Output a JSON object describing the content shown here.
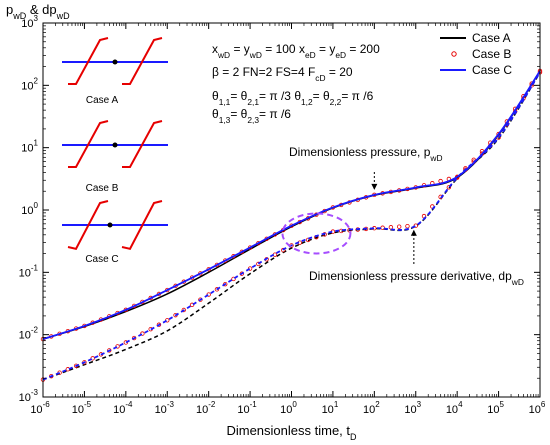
{
  "chart_data": {
    "type": "line",
    "x_scale": "log",
    "y_scale": "log",
    "xlim": [
      1e-06,
      1000000.0
    ],
    "ylim": [
      0.001,
      1000.0
    ],
    "xlabel": "Dimensionless time, t",
    "xlabel_sub": "D",
    "ylabel_parts": [
      "p",
      "wD",
      "& dp",
      "wD"
    ],
    "x_ticks": [
      {
        "base": "10",
        "exp": "-6"
      },
      {
        "base": "10",
        "exp": "-5"
      },
      {
        "base": "10",
        "exp": "-4"
      },
      {
        "base": "10",
        "exp": "-3"
      },
      {
        "base": "10",
        "exp": "-2"
      },
      {
        "base": "10",
        "exp": "-1"
      },
      {
        "base": "10",
        "exp": "0"
      },
      {
        "base": "10",
        "exp": "1"
      },
      {
        "base": "10",
        "exp": "2"
      },
      {
        "base": "10",
        "exp": "3"
      },
      {
        "base": "10",
        "exp": "4"
      },
      {
        "base": "10",
        "exp": "5"
      },
      {
        "base": "10",
        "exp": "6"
      }
    ],
    "y_ticks": [
      {
        "base": "10",
        "exp": "-3"
      },
      {
        "base": "10",
        "exp": "-2"
      },
      {
        "base": "10",
        "exp": "-1"
      },
      {
        "base": "10",
        "exp": "0"
      },
      {
        "base": "10",
        "exp": "1"
      },
      {
        "base": "10",
        "exp": "2"
      },
      {
        "base": "10",
        "exp": "3"
      }
    ],
    "legend": {
      "position": "top-right",
      "entries": [
        {
          "label": "Case A",
          "style": "solid",
          "color": "#000000"
        },
        {
          "label": "Case B",
          "style": "circle",
          "color": "#e60000"
        },
        {
          "label": "Case C",
          "style": "solid",
          "color": "#1a1aff"
        }
      ]
    },
    "series": [
      {
        "name": "Case A",
        "kind": "pressure",
        "style": "solid",
        "color": "#000000",
        "points": [
          [
            1e-06,
            0.0085
          ],
          [
            1e-05,
            0.0135
          ],
          [
            0.0001,
            0.0235
          ],
          [
            0.001,
            0.045
          ],
          [
            0.01,
            0.1
          ],
          [
            0.1,
            0.235
          ],
          [
            1,
            0.54
          ],
          [
            10.0,
            1.08
          ],
          [
            100.0,
            1.72
          ],
          [
            1000.0,
            2.25
          ],
          [
            10000.0,
            3.3
          ],
          [
            100000.0,
            16
          ],
          [
            1000000.0,
            170
          ]
        ]
      },
      {
        "name": "Case A",
        "kind": "derivative",
        "style": "dashed",
        "color": "#000000",
        "points": [
          [
            1e-06,
            0.0019
          ],
          [
            1e-05,
            0.0033
          ],
          [
            0.0001,
            0.0058
          ],
          [
            0.001,
            0.0115
          ],
          [
            0.01,
            0.032
          ],
          [
            0.1,
            0.095
          ],
          [
            1,
            0.245
          ],
          [
            10.0,
            0.43
          ],
          [
            100.0,
            0.5
          ],
          [
            1000.0,
            0.55
          ],
          [
            10000.0,
            3.2
          ],
          [
            100000.0,
            14
          ],
          [
            1000000.0,
            160
          ]
        ]
      },
      {
        "name": "Case B",
        "kind": "pressure",
        "style": "circle",
        "color": "#e60000",
        "points": [
          [
            1e-06,
            0.0085
          ],
          [
            1e-05,
            0.0138
          ],
          [
            0.0001,
            0.025
          ],
          [
            0.001,
            0.052
          ],
          [
            0.01,
            0.112
          ],
          [
            0.1,
            0.25
          ],
          [
            1,
            0.56
          ],
          [
            10.0,
            1.1
          ],
          [
            100.0,
            1.75
          ],
          [
            1000.0,
            2.3
          ],
          [
            10000.0,
            3.4
          ],
          [
            100000.0,
            16.5
          ],
          [
            1000000.0,
            170
          ]
        ]
      },
      {
        "name": "Case B",
        "kind": "derivative",
        "style": "circle",
        "color": "#e60000",
        "points": [
          [
            1e-06,
            0.0019
          ],
          [
            1e-05,
            0.0036
          ],
          [
            0.0001,
            0.0075
          ],
          [
            0.001,
            0.017
          ],
          [
            0.01,
            0.044
          ],
          [
            0.1,
            0.115
          ],
          [
            1,
            0.27
          ],
          [
            10.0,
            0.45
          ],
          [
            100.0,
            0.51
          ],
          [
            1000.0,
            0.56
          ],
          [
            10000.0,
            3.3
          ],
          [
            100000.0,
            14.5
          ],
          [
            1000000.0,
            162
          ]
        ]
      },
      {
        "name": "Case C",
        "kind": "pressure",
        "style": "solid",
        "color": "#1a1aff",
        "points": [
          [
            1e-06,
            0.0085
          ],
          [
            1e-05,
            0.0138
          ],
          [
            0.0001,
            0.025
          ],
          [
            0.001,
            0.052
          ],
          [
            0.01,
            0.112
          ],
          [
            0.1,
            0.25
          ],
          [
            1,
            0.56
          ],
          [
            10.0,
            1.1
          ],
          [
            100.0,
            1.75
          ],
          [
            1000.0,
            2.3
          ],
          [
            10000.0,
            3.4
          ],
          [
            100000.0,
            16.5
          ],
          [
            1000000.0,
            170
          ]
        ]
      },
      {
        "name": "Case C",
        "kind": "derivative",
        "style": "dashed",
        "color": "#1a1aff",
        "points": [
          [
            1e-06,
            0.0019
          ],
          [
            1e-05,
            0.0036
          ],
          [
            0.0001,
            0.0075
          ],
          [
            0.001,
            0.017
          ],
          [
            0.01,
            0.044
          ],
          [
            0.1,
            0.115
          ],
          [
            1,
            0.27
          ],
          [
            10.0,
            0.45
          ],
          [
            100.0,
            0.51
          ],
          [
            1000.0,
            0.56
          ],
          [
            10000.0,
            3.3
          ],
          [
            100000.0,
            14.5
          ],
          [
            1000000.0,
            162
          ]
        ]
      }
    ],
    "parameters": [
      [
        {
          "t": "x"
        },
        {
          "t": "wD",
          "sub": true
        },
        {
          "t": " = y"
        },
        {
          "t": "wD",
          "sub": true
        },
        {
          "t": " = 100   x"
        },
        {
          "t": "eD",
          "sub": true
        },
        {
          "t": " = y"
        },
        {
          "t": "eD",
          "sub": true
        },
        {
          "t": " = 200"
        }
      ],
      [
        {
          "t": "β = 2    FN=2    FS=4    F"
        },
        {
          "t": "cD",
          "sub": true
        },
        {
          "t": " = 20"
        }
      ],
      [
        {
          "t": "θ"
        },
        {
          "t": "1,1",
          "sub": true
        },
        {
          "t": "= θ"
        },
        {
          "t": "2,1",
          "sub": true
        },
        {
          "t": "= π /3    θ"
        },
        {
          "t": "1,2",
          "sub": true
        },
        {
          "t": "= θ"
        },
        {
          "t": "2,2",
          "sub": true
        },
        {
          "t": "= π /6"
        }
      ],
      [
        {
          "t": "θ"
        },
        {
          "t": "1,3",
          "sub": true
        },
        {
          "t": "= θ"
        },
        {
          "t": "2,3",
          "sub": true
        },
        {
          "t": "= π /6"
        }
      ]
    ],
    "annotations": [
      {
        "text": "Dimensionless pressure, p",
        "sub": "wD",
        "arrow_to": [
          100,
          1.95
        ]
      },
      {
        "text": "Dimensionless pressure derivative, dp",
        "sub": "wD",
        "arrow_to": [
          900,
          0.52
        ]
      }
    ],
    "highlight": {
      "shape": "ellipse",
      "center": [
        4,
        0.42
      ],
      "color": "#a64dff"
    },
    "insets": [
      {
        "label": "Case A"
      },
      {
        "label": "Case B"
      },
      {
        "label": "Case C"
      }
    ]
  }
}
